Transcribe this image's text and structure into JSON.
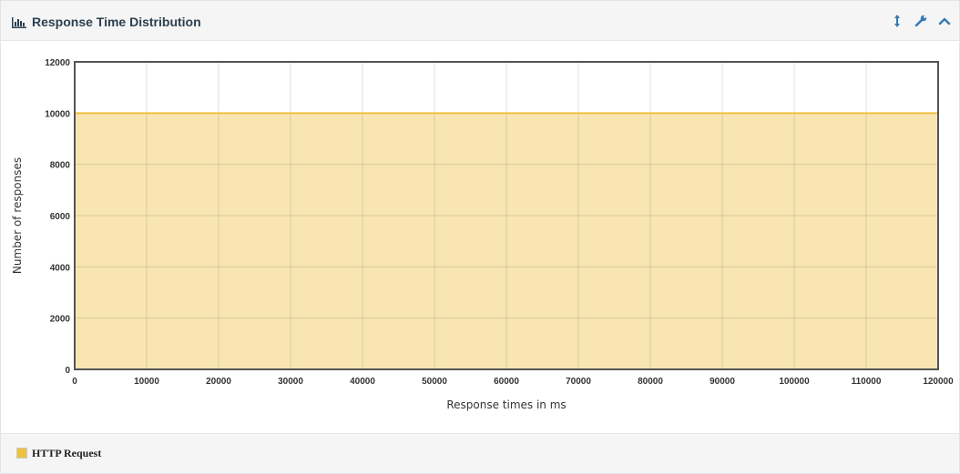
{
  "panel": {
    "title": "Response Time Distribution",
    "icons": {
      "title": "bar-chart-icon",
      "resize": "resize-vertical-icon",
      "settings": "wrench-icon",
      "collapse": "chevron-up-icon"
    }
  },
  "colors": {
    "series": "#edc240",
    "series_fill": "#f8e5b2",
    "accent": "#337ab7"
  },
  "chart_data": {
    "type": "area",
    "title": "",
    "xlabel": "Response times in ms",
    "ylabel": "Number of responses",
    "xlim": [
      0,
      120000
    ],
    "ylim": [
      0,
      12000
    ],
    "x_ticks": [
      0,
      10000,
      20000,
      30000,
      40000,
      50000,
      60000,
      70000,
      80000,
      90000,
      100000,
      110000,
      120000
    ],
    "y_ticks": [
      0,
      2000,
      4000,
      6000,
      8000,
      10000,
      12000
    ],
    "grid": true,
    "legend_placement": "bottom-left",
    "series": [
      {
        "name": "HTTP Request",
        "x": [
          0,
          120000
        ],
        "y": [
          10000,
          10000
        ]
      }
    ]
  }
}
